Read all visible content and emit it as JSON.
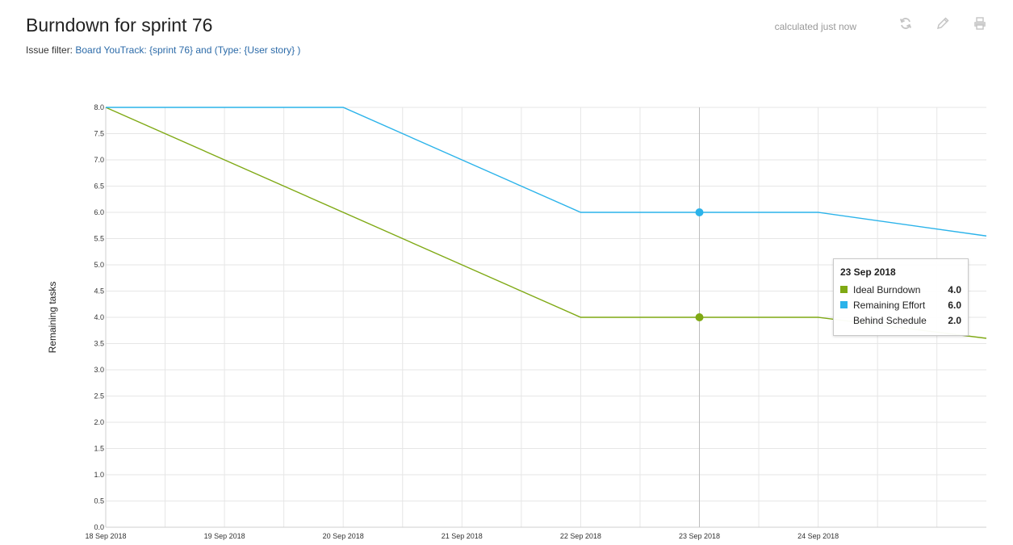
{
  "page": {
    "title": "Burndown for sprint 76",
    "filter_label": "Issue filter:",
    "filter_query": "Board YouTrack: {sprint 76} and (Type: {User story} )"
  },
  "toolbar": {
    "status": "calculated just now",
    "icons": [
      "refresh-icon",
      "pencil-icon",
      "printer-icon"
    ]
  },
  "tooltip": {
    "date": "23 Sep 2018",
    "rows": [
      {
        "name": "Ideal Burndown",
        "value": "4.0",
        "color": "#7fa914"
      },
      {
        "name": "Remaining Effort",
        "value": "6.0",
        "color": "#2bb3ea"
      },
      {
        "name": "Behind Schedule",
        "value": "2.0",
        "color": ""
      }
    ]
  },
  "chart_data": {
    "type": "line",
    "ylabel": "Remaining tasks",
    "ylim": [
      0,
      8
    ],
    "yticks": [
      "0.0",
      "0.5",
      "1.0",
      "1.5",
      "2.0",
      "2.5",
      "3.0",
      "3.5",
      "4.0",
      "4.5",
      "5.0",
      "5.5",
      "6.0",
      "6.5",
      "7.0",
      "7.5",
      "8.0"
    ],
    "xlim": [
      "18 Sep 2018",
      "25 Sep 2018 10:00"
    ],
    "xticks": [
      "18 Sep 2018",
      "19 Sep 2018",
      "20 Sep 2018",
      "21 Sep 2018",
      "22 Sep 2018",
      "23 Sep 2018",
      "24 Sep 2018"
    ],
    "grid": true,
    "crosshair_x": "23 Sep 2018",
    "series": [
      {
        "name": "Ideal Burndown",
        "color": "#7fa914",
        "points": [
          [
            "18 Sep 2018",
            8
          ],
          [
            "22 Sep 2018",
            4
          ],
          [
            "24 Sep 2018",
            4
          ],
          [
            "25 Sep 2018 10:00",
            3.6
          ]
        ],
        "highlight": [
          "23 Sep 2018",
          4
        ]
      },
      {
        "name": "Remaining Effort",
        "color": "#2bb3ea",
        "points": [
          [
            "18 Sep 2018",
            8
          ],
          [
            "20 Sep 2018",
            8
          ],
          [
            "22 Sep 2018",
            6
          ],
          [
            "24 Sep 2018",
            6
          ],
          [
            "25 Sep 2018 10:00",
            5.55
          ]
        ],
        "highlight": [
          "23 Sep 2018",
          6
        ]
      }
    ]
  }
}
